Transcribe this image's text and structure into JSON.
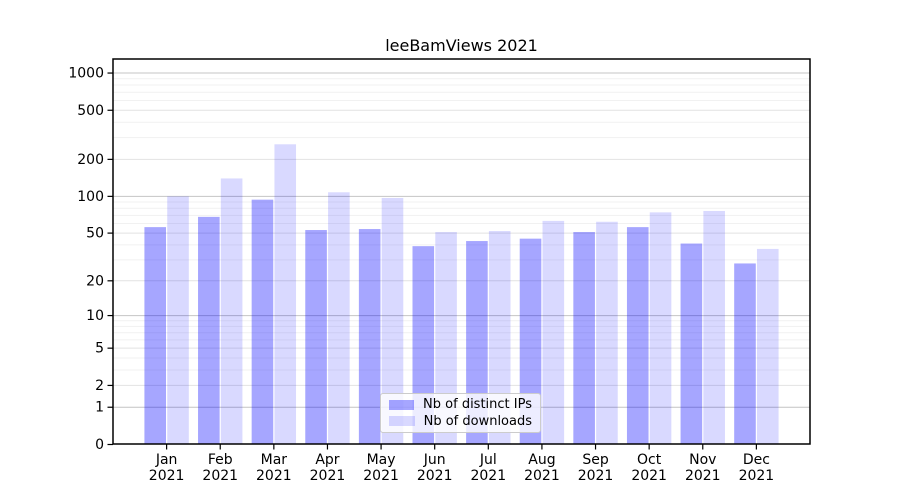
{
  "chart_data": {
    "type": "bar",
    "title": "leeBamViews 2021",
    "categories": [
      "Jan",
      "Feb",
      "Mar",
      "Apr",
      "May",
      "Jun",
      "Jul",
      "Aug",
      "Sep",
      "Oct",
      "Nov",
      "Dec"
    ],
    "category_year": "2021",
    "series": [
      {
        "name": "Nb of distinct IPs",
        "color": "rgba(0,0,255,0.35)",
        "values": [
          56,
          68,
          94,
          53,
          54,
          39,
          43,
          45,
          51,
          56,
          41,
          28
        ]
      },
      {
        "name": "Nb of downloads",
        "color": "rgba(0,0,255,0.15)",
        "values": [
          100,
          140,
          265,
          108,
          97,
          51,
          52,
          63,
          62,
          74,
          76,
          37
        ]
      }
    ],
    "yscale": "log10(value+1)",
    "yticks": [
      0,
      1,
      2,
      5,
      10,
      20,
      50,
      100,
      200,
      500,
      1000
    ],
    "ylim": [
      0,
      1300
    ],
    "xlabel": "",
    "ylabel": "",
    "grid": "both",
    "legend_position": "lower center"
  },
  "colors": {
    "background": "#ffffff",
    "axis_line": "#000000",
    "tick_text": "#000000",
    "grid_major": "#c4c4c4",
    "grid_mid": "#e2e2e2",
    "grid_minor": "#f1f1f1",
    "legend_border": "#cccccc"
  }
}
